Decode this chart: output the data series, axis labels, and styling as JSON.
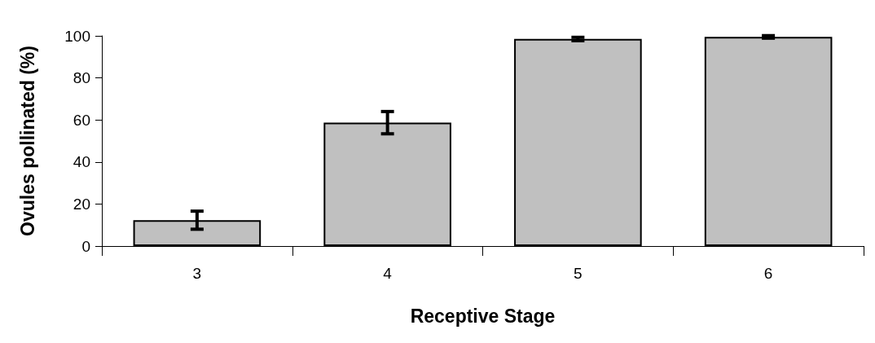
{
  "chart_data": {
    "type": "bar",
    "xlabel": "Receptive Stage",
    "ylabel": "Ovules pollinated (%)",
    "categories": [
      "3",
      "4",
      "5",
      "6"
    ],
    "values": [
      12.3,
      58.7,
      98.5,
      99.5
    ],
    "errors": [
      4.3,
      5.3,
      0.8,
      0.6
    ],
    "color": "#c0c0c0",
    "ylim": [
      0,
      100
    ],
    "yticks": [
      0,
      20,
      40,
      60,
      80,
      100
    ],
    "grid": false
  }
}
